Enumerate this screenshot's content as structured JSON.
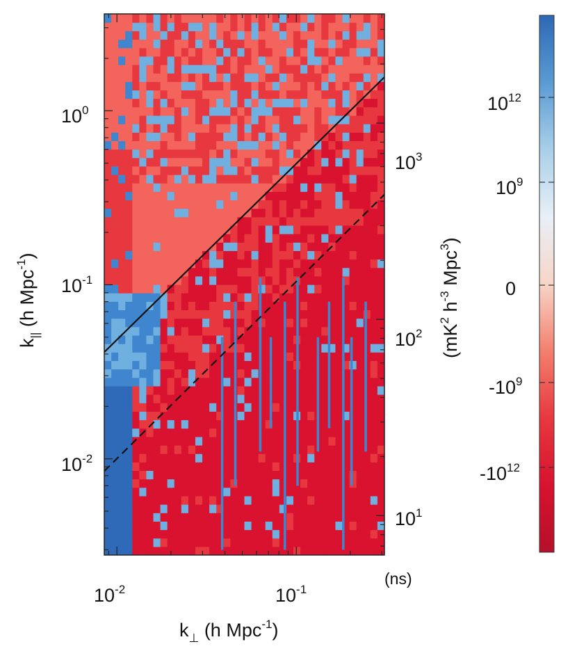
{
  "chart_data": {
    "type": "heatmap",
    "title": "",
    "x_axis": {
      "label_main": "k",
      "label_sub": "⊥",
      "label_units": " (h Mpc",
      "label_units_exp": "-1",
      "label_units_close": ")",
      "scale": "log",
      "range": [
        0.0085,
        0.31
      ],
      "ticks": [
        {
          "value": 0.01,
          "base": "10",
          "exp": "-2"
        },
        {
          "value": 0.1,
          "base": "10",
          "exp": "-1"
        }
      ]
    },
    "y_axis": {
      "label_main": "k",
      "label_sub": "||",
      "label_units": " (h Mpc",
      "label_units_exp": "-1",
      "label_units_close": ")",
      "scale": "log",
      "range": [
        0.0028,
        3.6
      ],
      "ticks": [
        {
          "value": 0.01,
          "base": "10",
          "exp": "-2"
        },
        {
          "value": 0.1,
          "base": "10",
          "exp": "-1"
        },
        {
          "value": 1,
          "base": "10",
          "exp": "0"
        }
      ]
    },
    "delay_axis": {
      "unit_label": "(ns)",
      "ticks": [
        {
          "value": 10,
          "base": "10",
          "exp": "1"
        },
        {
          "value": 100,
          "base": "10",
          "exp": "2"
        },
        {
          "value": 1000,
          "base": "10",
          "exp": "3"
        }
      ]
    },
    "colorbar": {
      "label": "(mK",
      "label_exp1": "2",
      "label_mid": " h",
      "label_exp2": "-3",
      "label_mid2": " Mpc",
      "label_exp3": "3",
      "label_close": ")",
      "scale": "symlog",
      "ticks": [
        {
          "value": 1000000000000.0,
          "base": "10",
          "exp": "12"
        },
        {
          "value": 1000000000.0,
          "base": "10",
          "exp": "9"
        },
        {
          "value": 0,
          "base": "0",
          "exp": ""
        },
        {
          "value": -1000000000.0,
          "base": "-10",
          "exp": "9"
        },
        {
          "value": -1000000000000.0,
          "base": "-10",
          "exp": "12"
        }
      ],
      "colors": [
        "#b5102a",
        "#d8122f",
        "#e8383f",
        "#f3806e",
        "#f7d5c8",
        "#e9f0f7",
        "#a9cfe8",
        "#5a9bd4",
        "#2e68b4"
      ]
    },
    "lines": [
      {
        "style": "solid",
        "points": [
          [
            0.0085,
            0.041
          ],
          [
            0.31,
            1.56
          ]
        ]
      },
      {
        "style": "dashed",
        "points": [
          [
            0.0085,
            0.0085
          ],
          [
            0.31,
            0.33
          ]
        ]
      }
    ],
    "palette": {
      "deep_red": "#d8122f",
      "red": "#e8383f",
      "light_red": "#f2645c",
      "light_blue": "#6fb0e0",
      "blue": "#3f86cf",
      "deep_blue": "#2e6ab7"
    }
  }
}
